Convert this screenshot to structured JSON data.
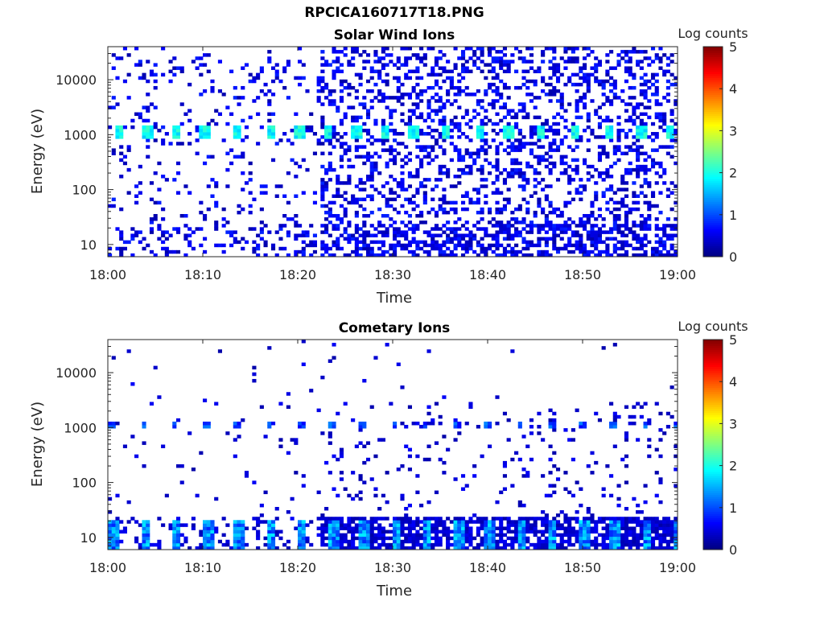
{
  "figure": {
    "title": "RPCICA160717T18.PNG"
  },
  "colorbar": {
    "label": "Log counts",
    "ticks": [
      "5",
      "4",
      "3",
      "2",
      "1",
      "0"
    ],
    "range": [
      0,
      5
    ],
    "colormap": "jet"
  },
  "chart_data": [
    {
      "type": "heatmap",
      "title": "Solar Wind Ions",
      "xlabel": "Time",
      "ylabel": "Energy (eV)",
      "x_range": [
        "18:00",
        "19:00"
      ],
      "y_scale": "log",
      "ylim": [
        6,
        40000
      ],
      "xticks": [
        "18:00",
        "18:10",
        "18:20",
        "18:30",
        "18:40",
        "18:50",
        "19:00"
      ],
      "yticks": [
        "10000",
        "1000",
        "100",
        "10"
      ],
      "colorbar_label": "Log counts",
      "features": {
        "proton_peak_energy_eV": 1100,
        "proton_peak_max_log_counts": 2.2,
        "peak_times_min": [
          1,
          4,
          7,
          10,
          13.5,
          17,
          20,
          23,
          26,
          29,
          32,
          35.5,
          39,
          42,
          45.5,
          49,
          52.5,
          56,
          59
        ],
        "background_log_counts": 0.3
      }
    },
    {
      "type": "heatmap",
      "title": "Cometary Ions",
      "xlabel": "Time",
      "ylabel": "Energy (eV)",
      "x_range": [
        "18:00",
        "19:00"
      ],
      "y_scale": "log",
      "ylim": [
        6,
        40000
      ],
      "xticks": [
        "18:00",
        "18:10",
        "18:20",
        "18:30",
        "18:40",
        "18:50",
        "19:00"
      ],
      "yticks": [
        "10000",
        "1000",
        "100",
        "10"
      ],
      "colorbar_label": "Log counts",
      "features": {
        "low_energy_band_eV": [
          6,
          20
        ],
        "low_energy_max_log_counts": 1.8,
        "line_1000_max_log_counts": 1.3,
        "background_log_counts": 0.2
      }
    }
  ]
}
